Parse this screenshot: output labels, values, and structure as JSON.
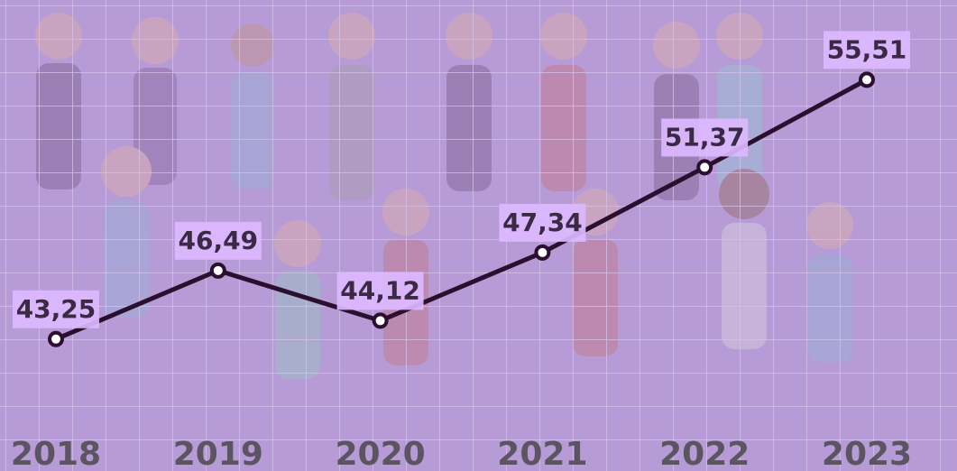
{
  "chart_data": {
    "type": "line",
    "categories": [
      "2018",
      "2019",
      "2020",
      "2021",
      "2022",
      "2023"
    ],
    "series": [
      {
        "color": "#2b0f2e",
        "values": [
          43.25,
          46.49,
          44.12,
          47.34,
          51.37,
          55.51
        ],
        "value_labels": [
          "43,25",
          "46,49",
          "44,12",
          "47,34",
          "51,37",
          "55,51"
        ]
      }
    ],
    "ylim": [
      40,
      58
    ]
  }
}
